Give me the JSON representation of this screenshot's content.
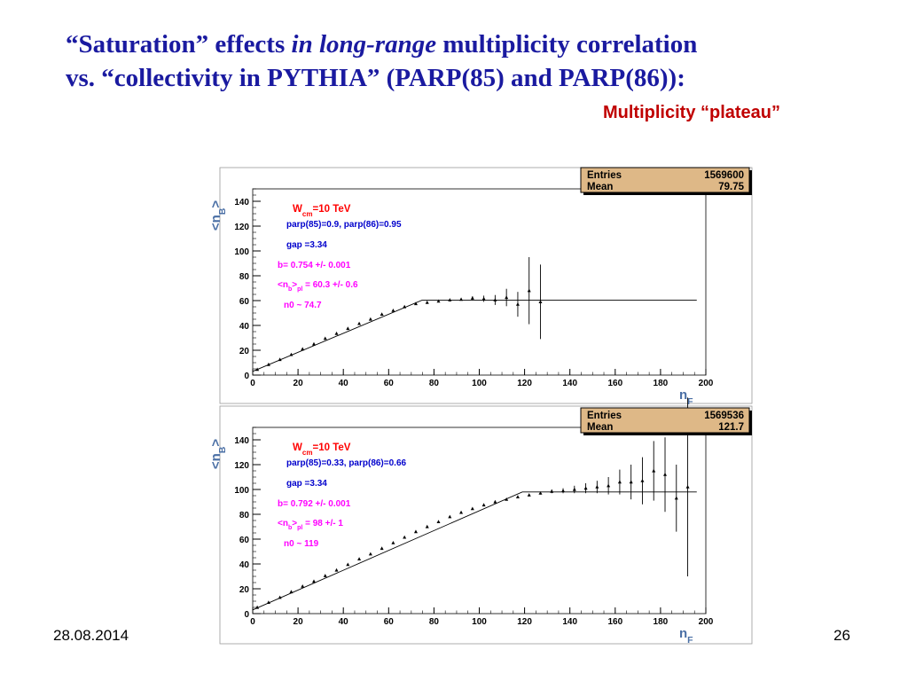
{
  "slide": {
    "title_line1_part1": "“Saturation”  effects ",
    "title_line1_italic": "in long-range",
    "title_line1_part2": " multiplicity correlation",
    "title_line2": "vs. “collectivity in PYTHIA” (PARP(85) and PARP(86)):",
    "subtitle": "Multiplicity “plateau”",
    "footer_date": "28.08.2014",
    "footer_page": "26",
    "colors": {
      "title": "#1a1aa0",
      "subtitle": "#c00000",
      "statbox": "#deb887",
      "red": "#ff0000",
      "blue": "#0000cc",
      "magenta": "#ff00ff"
    }
  },
  "chart_data": [
    {
      "type": "scatter",
      "xlabel": "n_F",
      "ylabel": "<n_B>",
      "xlim": [
        0,
        200
      ],
      "ylim": [
        0,
        150
      ],
      "xticks": [
        0,
        20,
        40,
        60,
        80,
        100,
        120,
        140,
        160,
        180,
        200
      ],
      "yticks": [
        0,
        20,
        40,
        60,
        80,
        100,
        120,
        140
      ],
      "stats": {
        "entries_label": "Entries",
        "entries": "1569600",
        "mean_label": "Mean",
        "mean": "79.75"
      },
      "annotations": [
        {
          "text": "W_cm=10 TeV",
          "color": "red"
        },
        {
          "text": "parp(85)=0.9, parp(86)=0.95",
          "color": "blue"
        },
        {
          "text": "gap =3.34",
          "color": "blue"
        },
        {
          "text": "b= 0.754 +/- 0.001",
          "color": "magenta"
        },
        {
          "text": "<n_b>_pl = 60.3 +/- 0.6",
          "color": "magenta"
        },
        {
          "text": "n0 ~ 74.7",
          "color": "magenta"
        }
      ],
      "fit": {
        "slope": 0.754,
        "plateau": 60.3,
        "n0": 74.7
      },
      "points": [
        {
          "x": 2,
          "y": 4.5,
          "err": 0
        },
        {
          "x": 7,
          "y": 8.5,
          "err": 0
        },
        {
          "x": 12,
          "y": 12.5,
          "err": 0
        },
        {
          "x": 17,
          "y": 16.5,
          "err": 0
        },
        {
          "x": 22,
          "y": 21,
          "err": 0
        },
        {
          "x": 27,
          "y": 25,
          "err": 0
        },
        {
          "x": 32,
          "y": 29.5,
          "err": 0
        },
        {
          "x": 37,
          "y": 33.5,
          "err": 0
        },
        {
          "x": 42,
          "y": 37.5,
          "err": 0
        },
        {
          "x": 47,
          "y": 41.5,
          "err": 0
        },
        {
          "x": 52,
          "y": 45,
          "err": 0
        },
        {
          "x": 57,
          "y": 49,
          "err": 0
        },
        {
          "x": 62,
          "y": 52,
          "err": 0
        },
        {
          "x": 67,
          "y": 55,
          "err": 0
        },
        {
          "x": 72,
          "y": 57.5,
          "err": 0
        },
        {
          "x": 77,
          "y": 58.5,
          "err": 0
        },
        {
          "x": 82,
          "y": 59.5,
          "err": 0
        },
        {
          "x": 87,
          "y": 60.5,
          "err": 0
        },
        {
          "x": 92,
          "y": 61,
          "err": 0.8
        },
        {
          "x": 97,
          "y": 62,
          "err": 1.5
        },
        {
          "x": 102,
          "y": 61.5,
          "err": 2.5
        },
        {
          "x": 107,
          "y": 60.5,
          "err": 4
        },
        {
          "x": 112,
          "y": 62.5,
          "err": 7
        },
        {
          "x": 117,
          "y": 57,
          "err": 10
        },
        {
          "x": 122,
          "y": 68,
          "err": 27
        },
        {
          "x": 127,
          "y": 59,
          "err": 30
        }
      ]
    },
    {
      "type": "scatter",
      "xlabel": "n_F",
      "ylabel": "<n_B>",
      "xlim": [
        0,
        200
      ],
      "ylim": [
        0,
        150
      ],
      "xticks": [
        0,
        20,
        40,
        60,
        80,
        100,
        120,
        140,
        160,
        180,
        200
      ],
      "yticks": [
        0,
        20,
        40,
        60,
        80,
        100,
        120,
        140
      ],
      "stats": {
        "entries_label": "Entries",
        "entries": "1569536",
        "mean_label": "Mean",
        "mean": "121.7"
      },
      "annotations": [
        {
          "text": "W_cm=10 TeV",
          "color": "red"
        },
        {
          "text": "parp(85)=0.33, parp(86)=0.66",
          "color": "blue"
        },
        {
          "text": "gap =3.34",
          "color": "blue"
        },
        {
          "text": "b= 0.792 +/- 0.001",
          "color": "magenta"
        },
        {
          "text": "<n_b>_pl = 98 +/- 1",
          "color": "magenta"
        },
        {
          "text": "n0 ~ 119",
          "color": "magenta"
        }
      ],
      "fit": {
        "slope": 0.792,
        "plateau": 98,
        "n0": 119
      },
      "points": [
        {
          "x": 2,
          "y": 5,
          "err": 0
        },
        {
          "x": 7,
          "y": 9,
          "err": 0
        },
        {
          "x": 12,
          "y": 13,
          "err": 0
        },
        {
          "x": 17,
          "y": 17.5,
          "err": 0
        },
        {
          "x": 22,
          "y": 22,
          "err": 0
        },
        {
          "x": 27,
          "y": 26,
          "err": 0
        },
        {
          "x": 32,
          "y": 30.5,
          "err": 0
        },
        {
          "x": 37,
          "y": 35,
          "err": 0
        },
        {
          "x": 42,
          "y": 39.5,
          "err": 0
        },
        {
          "x": 47,
          "y": 44,
          "err": 0
        },
        {
          "x": 52,
          "y": 48,
          "err": 0
        },
        {
          "x": 57,
          "y": 52.5,
          "err": 0
        },
        {
          "x": 62,
          "y": 57,
          "err": 0
        },
        {
          "x": 67,
          "y": 61.5,
          "err": 0
        },
        {
          "x": 72,
          "y": 66,
          "err": 0
        },
        {
          "x": 77,
          "y": 70,
          "err": 0
        },
        {
          "x": 82,
          "y": 74,
          "err": 0
        },
        {
          "x": 87,
          "y": 78,
          "err": 0
        },
        {
          "x": 92,
          "y": 81.5,
          "err": 0
        },
        {
          "x": 97,
          "y": 84.5,
          "err": 0
        },
        {
          "x": 102,
          "y": 87.5,
          "err": 0
        },
        {
          "x": 107,
          "y": 90,
          "err": 0
        },
        {
          "x": 112,
          "y": 92,
          "err": 0
        },
        {
          "x": 117,
          "y": 94,
          "err": 0
        },
        {
          "x": 122,
          "y": 95.5,
          "err": 0
        },
        {
          "x": 127,
          "y": 97,
          "err": 1
        },
        {
          "x": 132,
          "y": 98.5,
          "err": 1.5
        },
        {
          "x": 137,
          "y": 99,
          "err": 2
        },
        {
          "x": 142,
          "y": 100,
          "err": 3
        },
        {
          "x": 147,
          "y": 101,
          "err": 4
        },
        {
          "x": 152,
          "y": 102,
          "err": 5
        },
        {
          "x": 157,
          "y": 103,
          "err": 7
        },
        {
          "x": 162,
          "y": 106,
          "err": 10
        },
        {
          "x": 167,
          "y": 106,
          "err": 14
        },
        {
          "x": 172,
          "y": 107,
          "err": 19
        },
        {
          "x": 177,
          "y": 115,
          "err": 24
        },
        {
          "x": 182,
          "y": 112,
          "err": 30
        },
        {
          "x": 187,
          "y": 93,
          "err": 27
        },
        {
          "x": 192,
          "y": 102,
          "err": 72
        }
      ]
    }
  ]
}
